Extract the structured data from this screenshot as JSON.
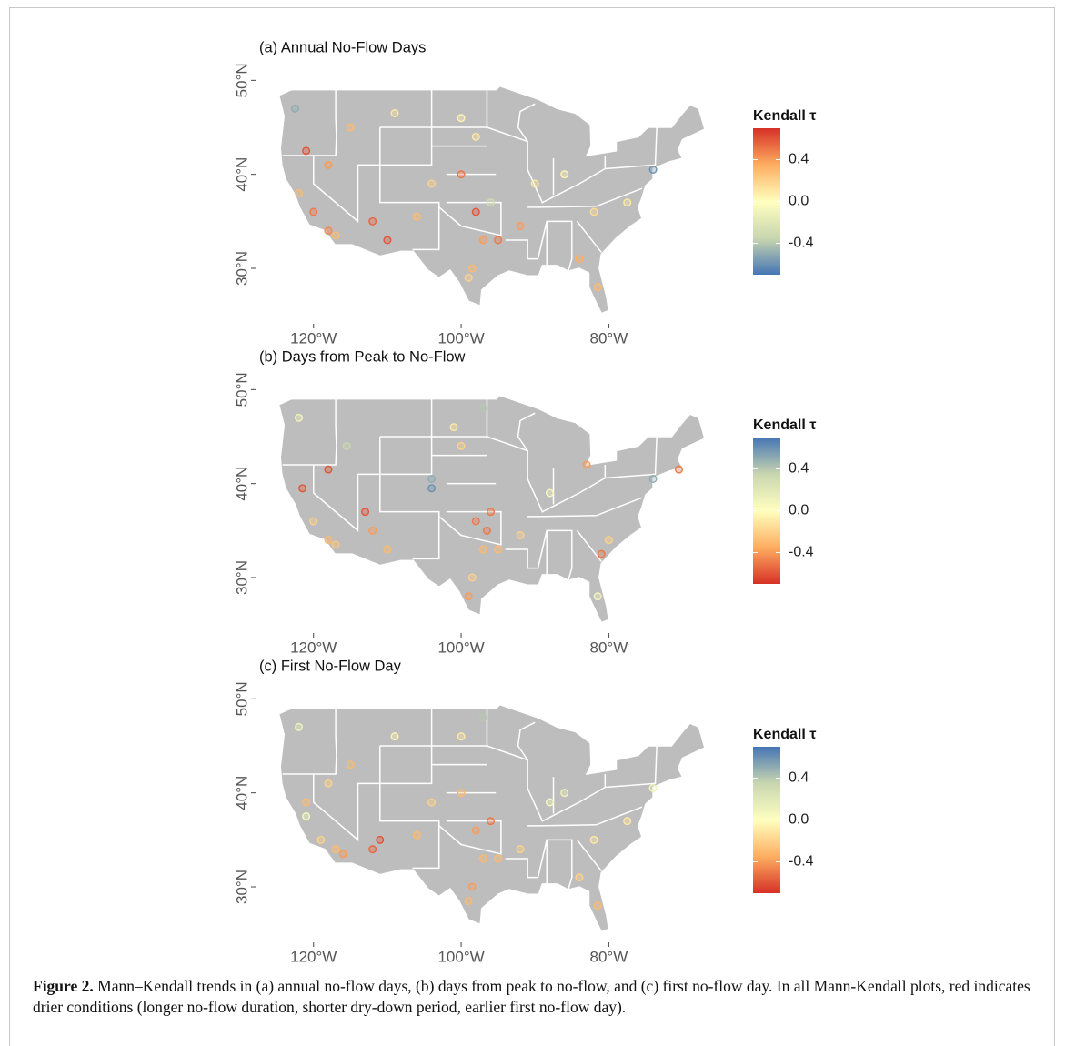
{
  "chart_data": [
    {
      "type": "map",
      "title": "(a) Annual No-Flow Days",
      "legend_title": "Kendall τ",
      "xlim": [
        -126.5,
        -66
      ],
      "ylim": [
        24,
        51
      ],
      "xticks": [
        {
          "value": -120,
          "label": "120°W"
        },
        {
          "value": -100,
          "label": "100°W"
        },
        {
          "value": -80,
          "label": "80°W"
        }
      ],
      "yticks": [
        {
          "value": 30,
          "label": "30°N"
        },
        {
          "value": 40,
          "label": "40°N"
        },
        {
          "value": 50,
          "label": "50°N"
        }
      ],
      "colorbar_lim": [
        -0.7,
        0.7
      ],
      "colorbar_ticks": [
        {
          "value": 0.4,
          "label": "0.4"
        },
        {
          "value": 0,
          "label": "0.0"
        },
        -0.4
      ],
      "colors": [
        "#4575b4",
        "#c9d6b0",
        "#ffffbf",
        "#fdae61",
        "#d73027"
      ],
      "x": [
        -122.5,
        -121,
        -118,
        -122,
        -120,
        -118,
        -117,
        -112,
        -110,
        -106,
        -104,
        -100,
        -98,
        -97,
        -98.5,
        -99,
        -96,
        -100,
        -98,
        -95,
        -92,
        -90,
        -86,
        -82,
        -84,
        -81.5,
        -74,
        -77.5,
        -115,
        -109
      ],
      "y": [
        47,
        42.5,
        41,
        38,
        36,
        34,
        33.5,
        35,
        33,
        35.5,
        39,
        40,
        36,
        33,
        30,
        29,
        37,
        46,
        44,
        33,
        34.5,
        39,
        40,
        36,
        31,
        28,
        40.5,
        37,
        45,
        46.5
      ],
      "values": [
        -0.5,
        0.6,
        0.4,
        0.3,
        0.5,
        0.45,
        0.3,
        0.55,
        0.6,
        0.3,
        0.2,
        0.5,
        0.6,
        0.4,
        0.3,
        0.2,
        -0.3,
        0.05,
        0.1,
        0.5,
        0.4,
        0.1,
        0.05,
        0.15,
        0.35,
        0.3,
        -0.6,
        0.1,
        0.3,
        0.1
      ]
    },
    {
      "type": "map",
      "title": "(b) Days from Peak to No-Flow",
      "legend_title": "Kendall τ",
      "xlim": [
        -126.5,
        -66
      ],
      "ylim": [
        24,
        51
      ],
      "xticks": [
        {
          "value": -120,
          "label": "120°W"
        },
        {
          "value": -100,
          "label": "100°W"
        },
        {
          "value": -80,
          "label": "80°W"
        }
      ],
      "yticks": [
        {
          "value": 30,
          "label": "30°N"
        },
        {
          "value": 40,
          "label": "40°N"
        },
        {
          "value": 50,
          "label": "50°N"
        }
      ],
      "colorbar_lim": [
        -0.7,
        0.7
      ],
      "colorbar_ticks": [
        {
          "value": 0.4,
          "label": "0.4"
        },
        {
          "value": 0,
          "label": "0.0"
        },
        -0.4
      ],
      "colors": [
        "#d73027",
        "#fdae61",
        "#ffffbf",
        "#c9d6b0",
        "#4575b4"
      ],
      "x": [
        -122,
        -121.5,
        -118,
        -120,
        -118,
        -117,
        -115.5,
        -112,
        -110,
        -104,
        -104,
        -101,
        -98,
        -97,
        -98.5,
        -99,
        -96,
        -100,
        -97,
        -95,
        -92,
        -88,
        -83,
        -80,
        -81,
        -81.5,
        -74,
        -70.5,
        -113,
        -96.5
      ],
      "y": [
        47,
        39.5,
        41.5,
        36,
        34,
        33.5,
        44,
        35,
        33,
        40.5,
        39.5,
        46,
        36,
        33,
        30,
        28,
        37,
        44,
        48,
        33,
        34.5,
        39,
        42,
        34,
        32.5,
        28,
        40.5,
        41.5,
        37,
        35
      ],
      "values": [
        0.1,
        -0.6,
        -0.6,
        -0.2,
        -0.3,
        -0.25,
        0.35,
        -0.4,
        -0.3,
        0.5,
        0.6,
        -0.1,
        -0.5,
        -0.3,
        -0.2,
        -0.4,
        -0.5,
        -0.2,
        0.4,
        -0.3,
        -0.2,
        0.05,
        -0.4,
        -0.2,
        -0.5,
        0.1,
        0.5,
        -0.5,
        -0.6,
        -0.5
      ]
    },
    {
      "type": "map",
      "title": "(c) First No-Flow Day",
      "legend_title": "Kendall τ",
      "xlim": [
        -126.5,
        -66
      ],
      "ylim": [
        24,
        51
      ],
      "xticks": [
        {
          "value": -120,
          "label": "120°W"
        },
        {
          "value": -100,
          "label": "100°W"
        },
        {
          "value": -80,
          "label": "80°W"
        }
      ],
      "yticks": [
        {
          "value": 30,
          "label": "30°N"
        },
        {
          "value": 40,
          "label": "40°N"
        },
        {
          "value": 50,
          "label": "50°N"
        }
      ],
      "colorbar_lim": [
        -0.7,
        0.7
      ],
      "colorbar_ticks": [
        {
          "value": 0.4,
          "label": "0.4"
        },
        {
          "value": 0,
          "label": "0.0"
        },
        -0.4
      ],
      "colors": [
        "#d73027",
        "#fdae61",
        "#ffffbf",
        "#c9d6b0",
        "#4575b4"
      ],
      "x": [
        -122,
        -121,
        -118,
        -121,
        -119,
        -117,
        -116,
        -112,
        -111,
        -106,
        -104,
        -100,
        -98,
        -97,
        -98.5,
        -99,
        -96,
        -100,
        -97,
        -95,
        -92,
        -88,
        -86,
        -82,
        -84,
        -81.5,
        -74,
        -77.5,
        -115,
        -109
      ],
      "y": [
        47,
        39,
        41,
        37.5,
        35,
        34,
        33.5,
        34,
        35,
        35.5,
        39,
        40,
        36,
        33,
        30,
        28.5,
        37,
        46,
        48,
        33,
        34,
        39,
        40,
        35,
        31,
        28,
        40.5,
        37,
        43,
        46
      ],
      "values": [
        0.1,
        -0.3,
        -0.2,
        0.05,
        -0.2,
        -0.3,
        -0.4,
        -0.55,
        -0.6,
        -0.3,
        -0.2,
        -0.3,
        -0.4,
        -0.3,
        -0.4,
        -0.3,
        -0.5,
        -0.1,
        0.4,
        -0.3,
        -0.2,
        0.05,
        0.1,
        -0.1,
        -0.2,
        -0.3,
        0.1,
        -0.1,
        -0.3,
        -0.05
      ]
    }
  ],
  "caption": {
    "label": "Figure 2.",
    "text": "Mann–Kendall trends in (a) annual no-flow days, (b) days from peak to no-flow, and (c) first no-flow day. In all Mann-Kendall plots, red indicates drier conditions (longer no-flow duration, shorter dry-down period, earlier first no-flow day)."
  }
}
